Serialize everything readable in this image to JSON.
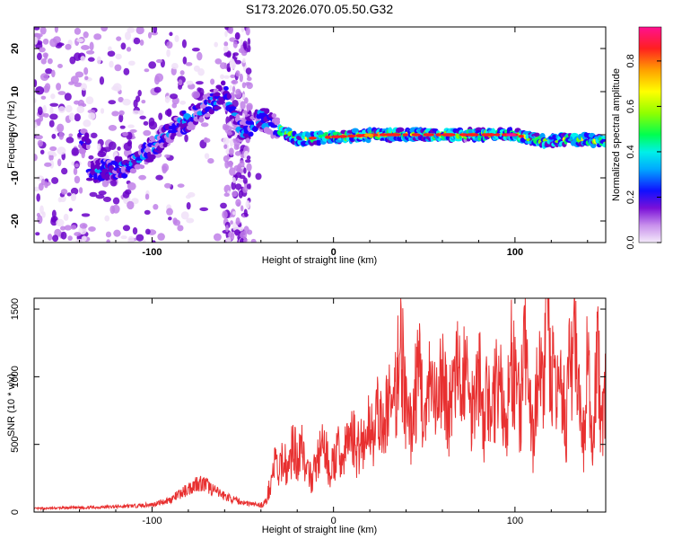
{
  "title": "S173.2026.070.05.50.G32",
  "chart_data": [
    {
      "type": "heatmap",
      "xlabel": "Height of straight line (km)",
      "ylabel": "Frequency (Hz)",
      "xlim": [
        -165,
        150
      ],
      "ylim": [
        -25,
        25
      ],
      "x_ticks": [
        -100,
        0,
        100
      ],
      "y_ticks": [
        -20,
        -10,
        0,
        10,
        20
      ],
      "colorbar": {
        "label": "Normalized spectral amplitude",
        "range": [
          0,
          0.95
        ],
        "ticks": [
          "0.0",
          "0.2",
          "0.4",
          "0.6",
          "0.8"
        ],
        "tick_values": [
          0.0,
          0.2,
          0.4,
          0.6,
          0.8
        ],
        "colors": [
          "#f0e0f8",
          "#c080e8",
          "#6a00c8",
          "#2000ff",
          "#00a0ff",
          "#00f0f0",
          "#00ff60",
          "#80ff00",
          "#ffff00",
          "#ffa000",
          "#ff2020",
          "#ff1090"
        ]
      },
      "ridge": [
        {
          "x": -135,
          "f": -8.5
        },
        {
          "x": -120,
          "f": -8.0
        },
        {
          "x": -110,
          "f": -6.5
        },
        {
          "x": -100,
          "f": -3.0
        },
        {
          "x": -90,
          "f": 1.0
        },
        {
          "x": -80,
          "f": 3.5
        },
        {
          "x": -70,
          "f": 6.5
        },
        {
          "x": -60,
          "f": 10.0
        },
        {
          "x": -50,
          "f": 0.0
        },
        {
          "x": -40,
          "f": 4.0
        },
        {
          "x": -35,
          "f": 2.5
        },
        {
          "x": -20,
          "f": -1.0
        },
        {
          "x": 0,
          "f": -0.5
        },
        {
          "x": 25,
          "f": 0.0
        },
        {
          "x": 50,
          "f": 0.0
        },
        {
          "x": 75,
          "f": 0.0
        },
        {
          "x": 100,
          "f": 0.0
        },
        {
          "x": 115,
          "f": -1.5
        },
        {
          "x": 130,
          "f": -1.0
        },
        {
          "x": 150,
          "f": -1.5
        }
      ]
    },
    {
      "type": "line",
      "xlabel": "Height of straight line (km)",
      "ylabel": "SNR (10 * v/v)",
      "xlim": [
        -165,
        150
      ],
      "ylim": [
        0,
        1580
      ],
      "x_ticks": [
        -100,
        0,
        100
      ],
      "y_ticks": [
        0,
        500,
        1000,
        1500
      ],
      "line_color": "#e83030",
      "series": [
        {
          "name": "SNR",
          "x": [
            -165,
            -150,
            -130,
            -110,
            -100,
            -90,
            -85,
            -80,
            -75,
            -70,
            -65,
            -60,
            -55,
            -50,
            -45,
            -40,
            -37,
            -35,
            -32,
            -30,
            -28,
            -25,
            -22,
            -20,
            -18,
            -15,
            -12,
            -10,
            -8,
            -5,
            -2,
            0,
            3,
            5,
            8,
            10,
            13,
            15,
            18,
            20,
            23,
            25,
            28,
            30,
            33,
            35,
            37,
            40,
            43,
            45,
            48,
            50,
            53,
            55,
            58,
            60,
            63,
            65,
            68,
            70,
            73,
            75,
            78,
            80,
            83,
            85,
            88,
            90,
            93,
            95,
            98,
            100,
            103,
            105,
            108,
            110,
            113,
            115,
            118,
            120,
            123,
            125,
            128,
            130,
            133,
            135,
            138,
            140,
            143,
            145,
            148,
            150
          ],
          "values": [
            25,
            30,
            35,
            45,
            55,
            90,
            130,
            170,
            220,
            200,
            150,
            120,
            90,
            70,
            60,
            50,
            80,
            200,
            380,
            250,
            420,
            300,
            520,
            350,
            590,
            280,
            250,
            330,
            420,
            480,
            300,
            360,
            450,
            380,
            520,
            600,
            440,
            550,
            500,
            680,
            580,
            760,
            520,
            900,
            650,
            1000,
            1390,
            700,
            600,
            880,
            1050,
            620,
            900,
            800,
            750,
            1100,
            700,
            850,
            1000,
            900,
            1150,
            700,
            950,
            1080,
            620,
            900,
            750,
            1050,
            800,
            600,
            1120,
            950,
            700,
            1200,
            850,
            500,
            1080,
            900,
            1580,
            1100,
            700,
            1250,
            600,
            1000,
            1280,
            800,
            500,
            1150,
            350,
            1250,
            600,
            950
          ]
        }
      ]
    }
  ]
}
